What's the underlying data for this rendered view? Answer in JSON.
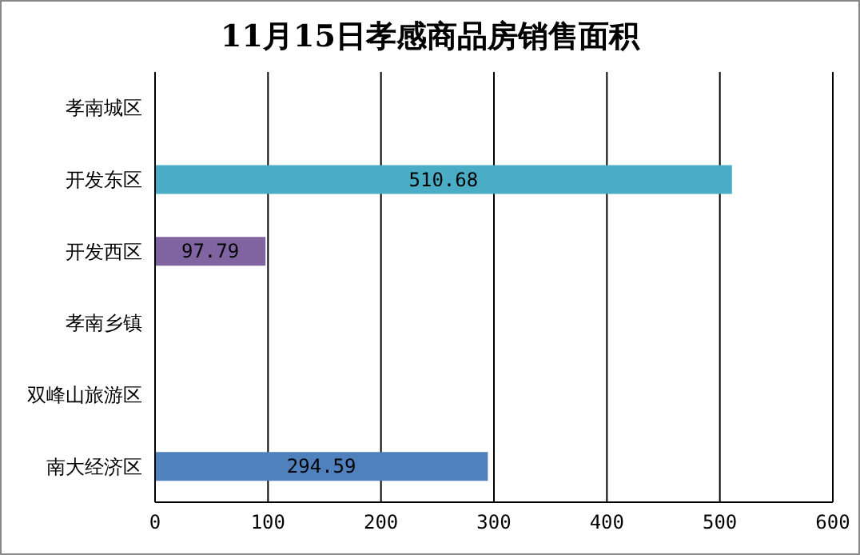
{
  "chart_data": {
    "type": "bar",
    "orientation": "horizontal",
    "title": "11月15日孝感商品房销售面积",
    "categories": [
      "孝南城区",
      "开发东区",
      "开发西区",
      "孝南乡镇",
      "双峰山旅游区",
      "南大经济区"
    ],
    "values": [
      null,
      510.68,
      97.79,
      null,
      null,
      294.59
    ],
    "colors": [
      "#4bacc6",
      "#4bacc6",
      "#8064a2",
      "#4f81bd",
      "#4f81bd",
      "#4f81bd"
    ],
    "xlim": [
      0,
      600
    ],
    "xticks": [
      0,
      100,
      200,
      300,
      400,
      500,
      600
    ],
    "grid": "x",
    "legend": false,
    "data_labels": true
  }
}
